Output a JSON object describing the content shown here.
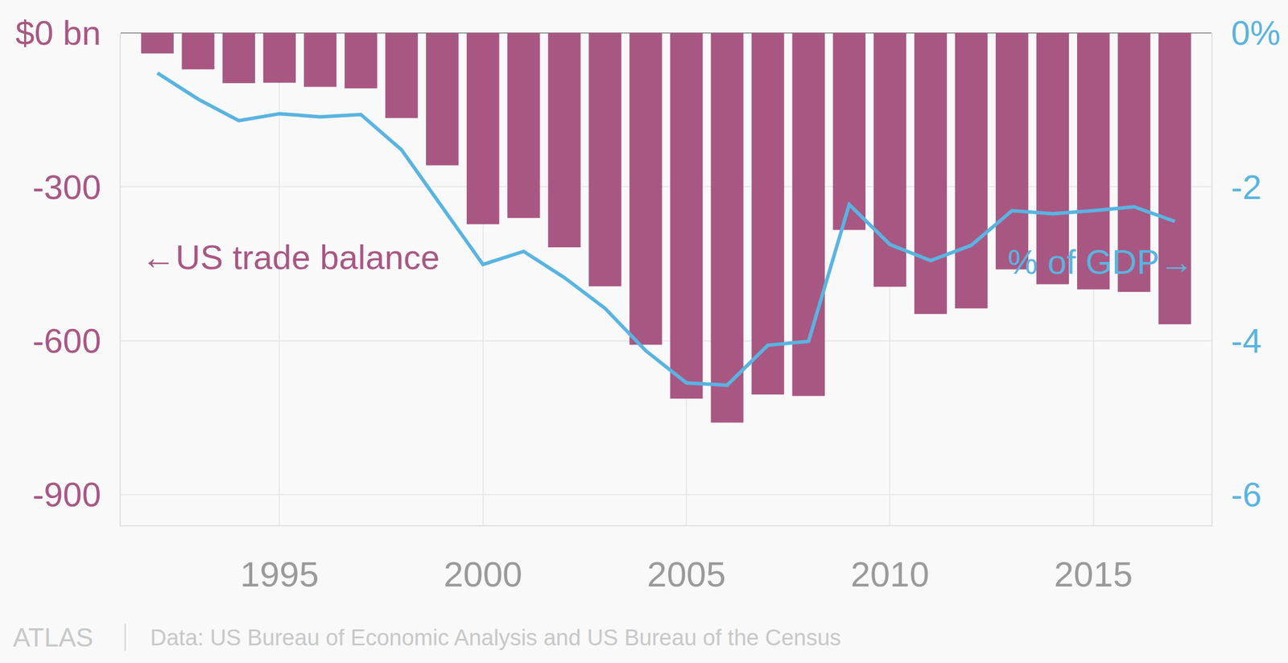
{
  "chart_data": {
    "type": "bar",
    "x": [
      1992,
      1993,
      1994,
      1995,
      1996,
      1997,
      1998,
      1999,
      2000,
      2001,
      2002,
      2003,
      2004,
      2005,
      2006,
      2007,
      2008,
      2009,
      2010,
      2011,
      2012,
      2013,
      2014,
      2015,
      2016,
      2017
    ],
    "series": [
      {
        "name": "←US trade balance",
        "type": "bar",
        "color": "#a85783",
        "values": [
          -40,
          -71,
          -98,
          -97,
          -105,
          -108,
          -166,
          -258,
          -373,
          -361,
          -418,
          -494,
          -608,
          -713,
          -760,
          -705,
          -708,
          -384,
          -495,
          -548,
          -537,
          -461,
          -490,
          -500,
          -505,
          -568
        ]
      },
      {
        "name": "% of GDP→",
        "type": "line",
        "axis": "y2",
        "color": "#5ab4e0",
        "values": [
          -0.52,
          -0.86,
          -1.14,
          -1.05,
          -1.09,
          -1.06,
          -1.52,
          -2.26,
          -3.01,
          -2.84,
          -3.18,
          -3.58,
          -4.13,
          -4.55,
          -4.58,
          -4.06,
          -4.01,
          -2.23,
          -2.75,
          -2.96,
          -2.76,
          -2.31,
          -2.35,
          -2.31,
          -2.26,
          -2.45
        ]
      }
    ],
    "xlim": [
      1991.1,
      2017.9
    ],
    "xticks": [
      1995,
      2000,
      2005,
      2010,
      2015
    ],
    "ylim": [
      -960,
      0
    ],
    "yticks": [
      {
        "value": 0,
        "label": "$0 bn"
      },
      -300,
      -600,
      -900
    ],
    "y2lim": [
      -6.4,
      0
    ],
    "y2ticks": [
      {
        "value": 0,
        "label": "0%"
      },
      -2,
      -4,
      -6
    ],
    "grid": true,
    "logo": "ATLAS",
    "source": "Data: US Bureau of Economic Analysis and US Bureau of the Census"
  }
}
